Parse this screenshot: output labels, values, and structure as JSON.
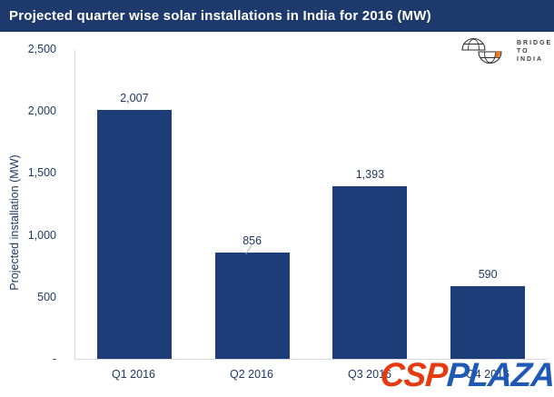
{
  "title_bar": {
    "title": "Projected quarter wise solar installations in India for 2016 (MW)"
  },
  "logo": {
    "line1": "BRIDGE",
    "line2": "TO",
    "line3": "INDIA",
    "icon": "globe-icon",
    "accent_color": "#e87722"
  },
  "watermark": {
    "part1": "CSP",
    "part2": "PLAZA",
    "color1": "#e63b11",
    "color2": "#1d59b5"
  },
  "chart_data": {
    "type": "bar",
    "categories": [
      "Q1 2016",
      "Q2 2016",
      "Q3 2016",
      "Q4 2016"
    ],
    "values": [
      2007,
      856,
      1393,
      590
    ],
    "data_labels": [
      "2,007",
      "856",
      "1,393",
      "590"
    ],
    "title": "Projected quarter wise solar installations in India for 2016 (MW)",
    "xlabel": "",
    "ylabel": "Projected installation (MW)",
    "ylim": [
      0,
      2500
    ],
    "ytick_values": [
      2500,
      2000,
      1500,
      1000,
      500,
      0
    ],
    "ytick_labels": [
      "2,500",
      "2,000",
      "1,500",
      "1,000",
      "500",
      "-"
    ],
    "grid": false,
    "legend": false,
    "bar_color": "#1d3d78",
    "label_color": "#1f3864"
  }
}
